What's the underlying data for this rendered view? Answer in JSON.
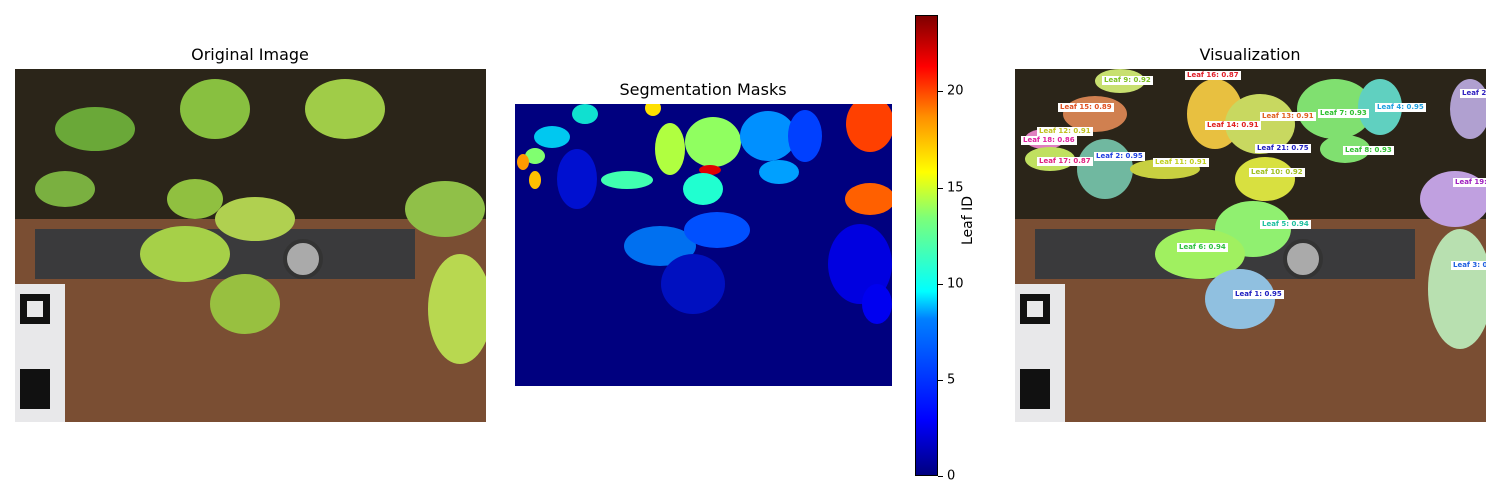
{
  "panels": {
    "original_title": "Original Image",
    "segmentation_title": "Segmentation Masks",
    "visualization_title": "Visualization"
  },
  "colorbar": {
    "label": "Leaf ID",
    "ticks": [
      "0",
      "5",
      "10",
      "15",
      "20"
    ]
  },
  "leaf_labels": [
    {
      "text": "Leaf 16: 0.87",
      "color": "#e0202a"
    },
    {
      "text": "Leaf 9: 0.92",
      "color": "#7cc020"
    },
    {
      "text": "Leaf 15: 0.89",
      "color": "#e05020"
    },
    {
      "text": "Leaf 4: 0.95",
      "color": "#20a0e0"
    },
    {
      "text": "Leaf 2",
      "color": "#3020c0"
    },
    {
      "text": "Leaf 13: 0.91",
      "color": "#e06020"
    },
    {
      "text": "Leaf 7: 0.93",
      "color": "#30c030"
    },
    {
      "text": "Leaf 14: 0.91",
      "color": "#e02020"
    },
    {
      "text": "Leaf 12: 0.91",
      "color": "#c0c020"
    },
    {
      "text": "Leaf 18: 0.86",
      "color": "#e020a0"
    },
    {
      "text": "Leaf 21: 0.75",
      "color": "#2020c0"
    },
    {
      "text": "Leaf 8: 0.93",
      "color": "#30c030"
    },
    {
      "text": "Leaf 2: 0.95",
      "color": "#2040e0"
    },
    {
      "text": "Leaf 17: 0.87",
      "color": "#e02080"
    },
    {
      "text": "Leaf 11: 0.91",
      "color": "#c0d020"
    },
    {
      "text": "Leaf 10: 0.92",
      "color": "#a0c020"
    },
    {
      "text": "Leaf 19:",
      "color": "#a020c0"
    },
    {
      "text": "Leaf 5: 0.94",
      "color": "#20c0a0"
    },
    {
      "text": "Leaf 6: 0.94",
      "color": "#30c040"
    },
    {
      "text": "Leaf 3: 0",
      "color": "#2060e0"
    },
    {
      "text": "Leaf 1: 0.95",
      "color": "#2020c0"
    }
  ]
}
